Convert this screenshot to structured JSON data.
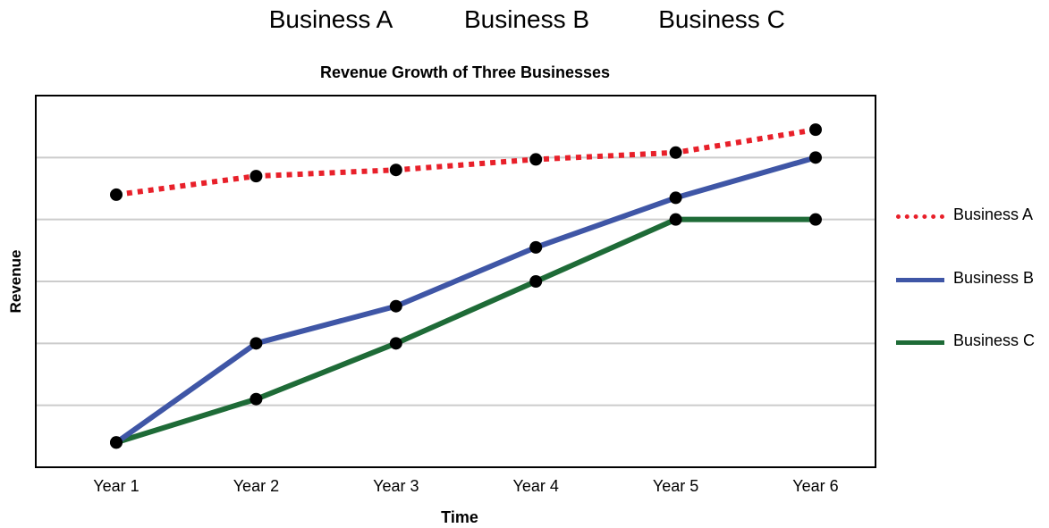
{
  "top_labels": [
    "Business A",
    "Business B",
    "Business C"
  ],
  "chart_data": {
    "type": "line",
    "title": "Revenue Growth of Three Businesses",
    "xlabel": "Time",
    "ylabel": "Revenue",
    "categories": [
      "Year 1",
      "Year 2",
      "Year 3",
      "Year 4",
      "Year 5",
      "Year 6"
    ],
    "ylim": [
      0,
      6
    ],
    "grid": true,
    "legend_position": "right",
    "series": [
      {
        "name": "Business A",
        "color": "#e8202a",
        "dash": "dotted",
        "values": [
          4.4,
          4.7,
          4.8,
          4.97,
          5.08,
          5.45
        ]
      },
      {
        "name": "Business B",
        "color": "#3f56a6",
        "dash": "solid",
        "values": [
          0.4,
          2.0,
          2.6,
          3.55,
          4.35,
          5.0
        ]
      },
      {
        "name": "Business C",
        "color": "#1e6b37",
        "dash": "solid",
        "values": [
          0.4,
          1.1,
          2.0,
          3.0,
          4.0,
          4.0
        ]
      }
    ]
  }
}
